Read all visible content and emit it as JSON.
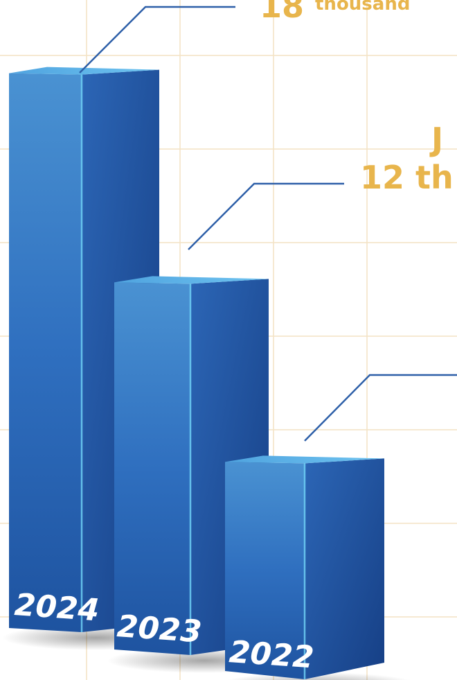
{
  "chart_data": {
    "type": "bar",
    "style": "3d-columns",
    "grid": true,
    "colors": {
      "bar_front": "#2f6fbf",
      "bar_side": "#1f57a6",
      "bar_top": "#56aee6",
      "bar_highlight": "#6fd0f5",
      "grid": "#f3e2c4",
      "callout_text": "#e8b54c",
      "leader_line": "#2d5fa8",
      "year_text": "#ffffff"
    },
    "categories": [
      "2024",
      "2023",
      "2022"
    ],
    "values": [
      18,
      12,
      7
    ],
    "ylim": [
      0,
      20
    ],
    "annotations": [
      {
        "category": "2024",
        "number": "18",
        "unit": "thousand",
        "text": "18 thousand"
      },
      {
        "category": "2023",
        "number": "12",
        "unit": "th",
        "text": "12 th",
        "partial_glyph": "J"
      },
      {
        "category": "2022",
        "number": "",
        "unit": "",
        "text": ""
      }
    ]
  }
}
